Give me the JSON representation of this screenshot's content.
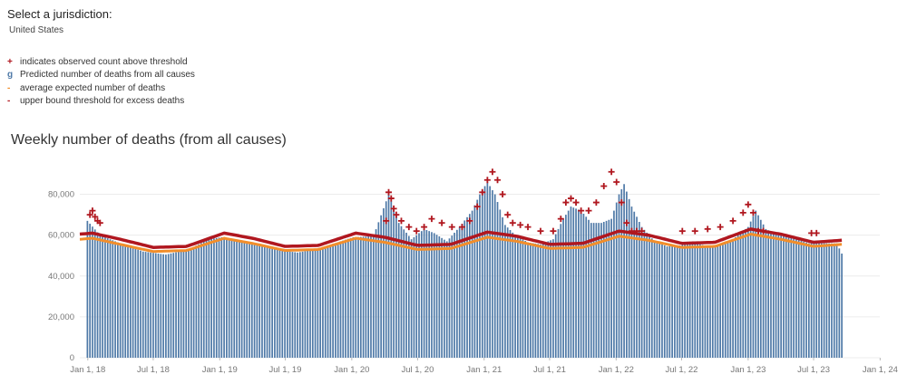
{
  "jurisdiction": {
    "label": "Select a jurisdiction:",
    "value": "United States"
  },
  "legend": [
    {
      "symbol": "+",
      "label": "indicates observed count above threshold",
      "color": "#b0171f",
      "icon": "plus-icon"
    },
    {
      "symbol": "g",
      "label": "Predicted number of deaths from all causes",
      "color": "#4e79a7",
      "icon": "bar-swatch-icon"
    },
    {
      "symbol": "-",
      "label": "average expected number of deaths",
      "color": "#f28e2b",
      "icon": "line-swatch-icon"
    },
    {
      "symbol": "-",
      "label": "upper bound threshold for excess deaths",
      "color": "#b0171f",
      "icon": "line-swatch-icon"
    }
  ],
  "chart_title": "Weekly number of deaths (from all causes)",
  "chart_data": {
    "type": "bar",
    "title": "Weekly number of deaths (from all causes)",
    "xlabel": "",
    "ylabel": "",
    "ylim": [
      0,
      90000
    ],
    "xlim": [
      "2017-12-10",
      "2023-12-31"
    ],
    "grid": true,
    "y_ticks": [
      0,
      20000,
      40000,
      60000,
      80000
    ],
    "y_tick_labels": [
      "0",
      "20,000",
      "40,000",
      "60,000",
      "80,000"
    ],
    "x_ticks": [
      {
        "date": "2018-01-01",
        "label": "Jan 1, 18"
      },
      {
        "date": "2018-07-01",
        "label": "Jul 1, 18"
      },
      {
        "date": "2019-01-01",
        "label": "Jan 1, 19"
      },
      {
        "date": "2019-07-01",
        "label": "Jul 1, 19"
      },
      {
        "date": "2020-01-01",
        "label": "Jan 1, 20"
      },
      {
        "date": "2020-07-01",
        "label": "Jul 1, 20"
      },
      {
        "date": "2021-01-01",
        "label": "Jan 1, 21"
      },
      {
        "date": "2021-07-01",
        "label": "Jul 1, 21"
      },
      {
        "date": "2022-01-01",
        "label": "Jan 1, 22"
      },
      {
        "date": "2022-07-01",
        "label": "Jul 1, 22"
      },
      {
        "date": "2023-01-01",
        "label": "Jan 1, 23"
      },
      {
        "date": "2023-07-01",
        "label": "Jul 1, 23"
      },
      {
        "date": "2024-01-01",
        "label": "Jan 1, 24"
      }
    ],
    "series": [
      {
        "name": "Predicted number of deaths from all causes",
        "type": "bar",
        "color": "#4e79a7",
        "x": [
          "2017-12-31",
          "2018-02-04",
          "2018-04-01",
          "2018-06-03",
          "2018-08-05",
          "2018-10-07",
          "2018-12-02",
          "2019-01-06",
          "2019-02-03",
          "2019-04-07",
          "2019-06-02",
          "2019-08-04",
          "2019-10-06",
          "2019-12-01",
          "2020-01-05",
          "2020-03-01",
          "2020-04-12",
          "2020-05-10",
          "2020-06-14",
          "2020-07-19",
          "2020-08-16",
          "2020-09-20",
          "2020-10-25",
          "2020-11-29",
          "2020-12-20",
          "2021-01-10",
          "2021-01-31",
          "2021-02-28",
          "2021-03-28",
          "2021-05-02",
          "2021-06-06",
          "2021-07-11",
          "2021-08-08",
          "2021-08-29",
          "2021-09-26",
          "2021-10-24",
          "2021-11-21",
          "2021-12-19",
          "2022-01-09",
          "2022-01-23",
          "2022-02-13",
          "2022-03-13",
          "2022-04-17",
          "2022-05-22",
          "2022-06-26",
          "2022-07-31",
          "2022-09-04",
          "2022-10-09",
          "2022-11-13",
          "2022-12-11",
          "2023-01-01",
          "2023-01-22",
          "2023-02-19",
          "2023-03-26",
          "2023-05-07",
          "2023-06-18",
          "2023-07-30",
          "2023-09-03",
          "2023-09-17"
        ],
        "values": [
          67000,
          60000,
          56000,
          52000,
          50500,
          53000,
          58000,
          59000,
          58000,
          56000,
          53000,
          51500,
          53500,
          57000,
          59000,
          59500,
          80000,
          66000,
          58000,
          63000,
          61000,
          57000,
          64000,
          72000,
          80000,
          86000,
          80000,
          65000,
          60000,
          56500,
          55500,
          58000,
          68000,
          74000,
          72000,
          66000,
          66000,
          68000,
          80000,
          85000,
          74000,
          64000,
          57000,
          54500,
          55000,
          56000,
          55000,
          55000,
          57000,
          61000,
          64000,
          72000,
          63000,
          60000,
          58500,
          56000,
          56000,
          56000,
          51000
        ]
      },
      {
        "name": "average expected number of deaths",
        "type": "line",
        "color": "#f28e2b",
        "x": [
          "2017-12-10",
          "2018-01-14",
          "2018-04-01",
          "2018-07-01",
          "2018-10-01",
          "2019-01-13",
          "2019-04-01",
          "2019-07-01",
          "2019-10-01",
          "2020-01-12",
          "2020-04-01",
          "2020-07-01",
          "2020-10-01",
          "2021-01-10",
          "2021-04-01",
          "2021-07-01",
          "2021-10-01",
          "2022-01-09",
          "2022-04-01",
          "2022-07-01",
          "2022-10-01",
          "2023-01-08",
          "2023-04-01",
          "2023-07-01",
          "2023-09-17"
        ],
        "values": [
          58000,
          58500,
          55500,
          52000,
          52500,
          58500,
          56000,
          52500,
          53000,
          58500,
          56500,
          53000,
          53500,
          59000,
          57000,
          53500,
          54000,
          59500,
          57500,
          54000,
          54500,
          60500,
          58000,
          54500,
          55500
        ]
      },
      {
        "name": "upper bound threshold for excess deaths",
        "type": "line",
        "color": "#b0171f",
        "x": [
          "2017-12-10",
          "2018-01-14",
          "2018-04-01",
          "2018-07-01",
          "2018-10-01",
          "2019-01-13",
          "2019-04-01",
          "2019-07-01",
          "2019-10-01",
          "2020-01-12",
          "2020-04-01",
          "2020-07-01",
          "2020-10-01",
          "2021-01-10",
          "2021-04-01",
          "2021-07-01",
          "2021-10-01",
          "2022-01-09",
          "2022-04-01",
          "2022-07-01",
          "2022-10-01",
          "2023-01-08",
          "2023-04-01",
          "2023-07-01",
          "2023-09-17"
        ],
        "values": [
          60500,
          61000,
          58000,
          54000,
          54500,
          61000,
          58500,
          54500,
          55000,
          61000,
          59000,
          55000,
          55500,
          61500,
          59500,
          55500,
          56000,
          62000,
          60000,
          56000,
          56500,
          63000,
          60500,
          56500,
          57500
        ]
      },
      {
        "name": "indicates observed count above threshold",
        "type": "scatter",
        "color": "#b0171f",
        "x": [
          "2018-01-07",
          "2018-01-14",
          "2018-01-21",
          "2018-01-28",
          "2018-02-04",
          "2020-04-05",
          "2020-04-12",
          "2020-04-19",
          "2020-04-26",
          "2020-05-03",
          "2020-05-17",
          "2020-06-07",
          "2020-06-28",
          "2020-07-19",
          "2020-08-09",
          "2020-09-06",
          "2020-10-04",
          "2020-11-01",
          "2020-11-22",
          "2020-12-13",
          "2020-12-27",
          "2021-01-10",
          "2021-01-24",
          "2021-02-07",
          "2021-02-21",
          "2021-03-07",
          "2021-03-21",
          "2021-04-11",
          "2021-05-02",
          "2021-06-06",
          "2021-07-11",
          "2021-08-01",
          "2021-08-15",
          "2021-08-29",
          "2021-09-12",
          "2021-09-26",
          "2021-10-17",
          "2021-11-07",
          "2021-11-28",
          "2021-12-19",
          "2022-01-02",
          "2022-01-16",
          "2022-01-30",
          "2022-02-13",
          "2022-02-27",
          "2022-03-13",
          "2022-07-03",
          "2022-08-07",
          "2022-09-11",
          "2022-10-16",
          "2022-11-20",
          "2022-12-18",
          "2023-01-01",
          "2023-01-15",
          "2023-01-29",
          "2023-02-12",
          "2023-06-25",
          "2023-07-09"
        ],
        "values": [
          70000,
          72000,
          69000,
          67000,
          66000,
          67000,
          81000,
          78000,
          73000,
          70000,
          67000,
          64000,
          62000,
          64000,
          68000,
          66000,
          64000,
          64000,
          67000,
          74000,
          81000,
          87000,
          91000,
          87000,
          80000,
          70000,
          66000,
          65000,
          64000,
          62000,
          62000,
          68000,
          76000,
          78000,
          76000,
          72000,
          72000,
          76000,
          84000,
          91000,
          86000,
          76000,
          66000,
          62000,
          62000,
          62000,
          62000,
          62000,
          63000,
          64000,
          67000,
          71000,
          75000,
          71000,
          62000,
          62000,
          61000,
          61000
        ]
      }
    ]
  }
}
